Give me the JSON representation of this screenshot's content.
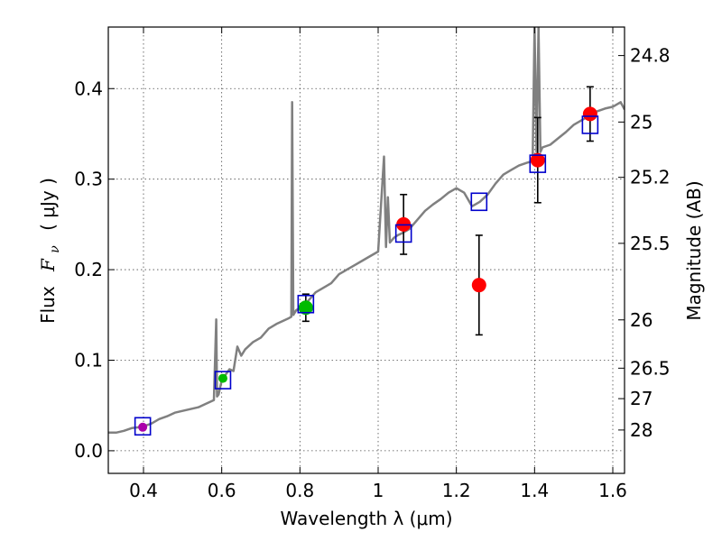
{
  "chart_data": {
    "type": "scatter",
    "xlabel": "Wavelength  λ (μm)",
    "ylabel_text": "Flux",
    "ylabel_symbol": "F",
    "ylabel_subscript": "ν",
    "ylabel_unit": "( μJy )",
    "y2label": "Magnitude (AB)",
    "xlim": [
      0.31,
      1.63
    ],
    "ylim": [
      -0.025,
      0.468
    ],
    "x_ticks": [
      0.4,
      0.6,
      0.8,
      1.0,
      1.2,
      1.4,
      1.6
    ],
    "x_tick_labels": [
      "0.4",
      "0.6",
      "0.8",
      "1",
      "1.2",
      "1.4",
      "1.6"
    ],
    "y_ticks": [
      0.0,
      0.1,
      0.2,
      0.3,
      0.4
    ],
    "y_tick_labels": [
      "0.0",
      "0.1",
      "0.2",
      "0.3",
      "0.4"
    ],
    "mag_ticks": [
      24.8,
      25,
      25.2,
      25.5,
      26,
      26.5,
      27,
      28
    ],
    "mag_tick_labels": [
      "24.8",
      "25",
      "25.2",
      "25.5",
      "26",
      "26.5",
      "27",
      "28"
    ],
    "grid": true,
    "colors": {
      "spectrum": "#808080",
      "model_square": "#0000cc",
      "obs_red": "#ff0000",
      "obs_green": "#00bb00",
      "obs_purple": "#aa00aa",
      "errorbar": "#000000"
    },
    "spectrum": {
      "x": [
        0.31,
        0.33,
        0.35,
        0.37,
        0.39,
        0.4,
        0.42,
        0.44,
        0.46,
        0.48,
        0.5,
        0.52,
        0.54,
        0.56,
        0.58,
        0.586,
        0.588,
        0.592,
        0.6,
        0.62,
        0.63,
        0.64,
        0.65,
        0.66,
        0.68,
        0.7,
        0.72,
        0.74,
        0.76,
        0.77,
        0.778,
        0.78,
        0.783,
        0.79,
        0.8,
        0.82,
        0.84,
        0.86,
        0.88,
        0.9,
        0.92,
        0.94,
        0.96,
        0.98,
        1.0,
        1.015,
        1.02,
        1.025,
        1.03,
        1.04,
        1.05,
        1.06,
        1.08,
        1.1,
        1.12,
        1.14,
        1.16,
        1.18,
        1.2,
        1.22,
        1.24,
        1.26,
        1.28,
        1.3,
        1.32,
        1.34,
        1.36,
        1.38,
        1.395,
        1.4,
        1.405,
        1.41,
        1.415,
        1.42,
        1.44,
        1.46,
        1.48,
        1.5,
        1.52,
        1.54,
        1.56,
        1.58,
        1.6,
        1.62,
        1.63
      ],
      "y": [
        0.02,
        0.02,
        0.022,
        0.025,
        0.026,
        0.027,
        0.03,
        0.035,
        0.038,
        0.042,
        0.044,
        0.046,
        0.048,
        0.052,
        0.056,
        0.145,
        0.06,
        0.062,
        0.078,
        0.09,
        0.088,
        0.115,
        0.105,
        0.112,
        0.12,
        0.125,
        0.135,
        0.14,
        0.144,
        0.146,
        0.148,
        0.385,
        0.15,
        0.155,
        0.158,
        0.165,
        0.175,
        0.18,
        0.185,
        0.195,
        0.2,
        0.205,
        0.21,
        0.215,
        0.22,
        0.325,
        0.225,
        0.28,
        0.23,
        0.235,
        0.238,
        0.24,
        0.245,
        0.255,
        0.265,
        0.272,
        0.278,
        0.285,
        0.29,
        0.285,
        0.27,
        0.275,
        0.283,
        0.295,
        0.305,
        0.31,
        0.315,
        0.318,
        0.32,
        0.468,
        0.33,
        0.468,
        0.33,
        0.335,
        0.338,
        0.345,
        0.352,
        0.36,
        0.365,
        0.37,
        0.375,
        0.378,
        0.38,
        0.385,
        0.377
      ]
    },
    "model_points": [
      {
        "x": 0.398,
        "y": 0.027
      },
      {
        "x": 0.603,
        "y": 0.078
      },
      {
        "x": 0.815,
        "y": 0.162
      },
      {
        "x": 1.065,
        "y": 0.24
      },
      {
        "x": 1.258,
        "y": 0.275
      },
      {
        "x": 1.408,
        "y": 0.317
      },
      {
        "x": 1.542,
        "y": 0.36
      }
    ],
    "observed_points": [
      {
        "x": 0.398,
        "y": 0.026,
        "err": 0.0,
        "color": "obs_purple"
      },
      {
        "x": 0.603,
        "y": 0.08,
        "err": 0.0,
        "color": "obs_green"
      },
      {
        "x": 0.815,
        "y": 0.158,
        "err": 0.015,
        "color": "obs_green"
      },
      {
        "x": 1.065,
        "y": 0.25,
        "err": 0.033,
        "color": "obs_red"
      },
      {
        "x": 1.258,
        "y": 0.183,
        "err": 0.055,
        "color": "obs_red"
      },
      {
        "x": 1.408,
        "y": 0.321,
        "err": 0.047,
        "color": "obs_red"
      },
      {
        "x": 1.542,
        "y": 0.372,
        "err": 0.03,
        "color": "obs_red"
      }
    ]
  }
}
